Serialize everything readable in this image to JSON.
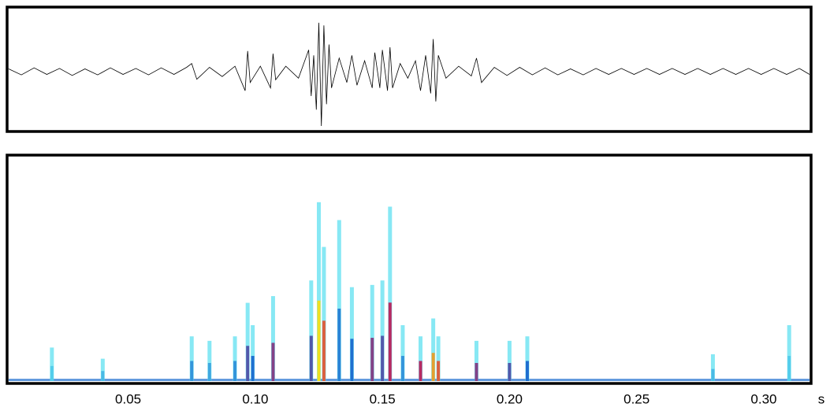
{
  "chart_data": [
    {
      "type": "line",
      "color": "#000000",
      "xlim": [
        0.003,
        0.318
      ],
      "ylim": [
        -1,
        1
      ],
      "x": [
        0.003,
        0.008,
        0.013,
        0.018,
        0.023,
        0.028,
        0.033,
        0.038,
        0.043,
        0.048,
        0.053,
        0.058,
        0.063,
        0.068,
        0.073,
        0.075,
        0.077,
        0.082,
        0.087,
        0.092,
        0.096,
        0.097,
        0.098,
        0.102,
        0.106,
        0.107,
        0.108,
        0.112,
        0.117,
        0.121,
        0.122,
        0.123,
        0.124,
        0.125,
        0.126,
        0.127,
        0.128,
        0.129,
        0.13,
        0.133,
        0.136,
        0.138,
        0.14,
        0.143,
        0.146,
        0.147,
        0.149,
        0.15,
        0.152,
        0.153,
        0.154,
        0.157,
        0.16,
        0.163,
        0.165,
        0.167,
        0.169,
        0.17,
        0.171,
        0.172,
        0.175,
        0.18,
        0.185,
        0.187,
        0.189,
        0.194,
        0.199,
        0.204,
        0.209,
        0.214,
        0.219,
        0.224,
        0.229,
        0.234,
        0.239,
        0.244,
        0.249,
        0.254,
        0.259,
        0.264,
        0.269,
        0.274,
        0.279,
        0.284,
        0.289,
        0.294,
        0.299,
        0.304,
        0.309,
        0.314,
        0.318
      ],
      "values": [
        0.05,
        -0.06,
        0.07,
        -0.05,
        0.06,
        -0.07,
        0.05,
        -0.06,
        0.07,
        -0.05,
        0.06,
        -0.06,
        0.07,
        -0.05,
        0.08,
        0.15,
        -0.14,
        0.08,
        -0.09,
        0.1,
        -0.35,
        0.38,
        -0.2,
        0.1,
        -0.3,
        0.33,
        -0.15,
        0.1,
        -0.12,
        0.4,
        -0.45,
        0.3,
        -0.7,
        0.9,
        -1,
        0.85,
        -0.6,
        0.5,
        -0.3,
        0.25,
        -0.2,
        0.3,
        -0.25,
        0.2,
        -0.3,
        0.35,
        -0.3,
        0.4,
        -0.35,
        0.45,
        -0.3,
        0.15,
        -0.12,
        0.2,
        -0.35,
        0.3,
        -0.4,
        0.6,
        -0.55,
        0.3,
        -0.12,
        0.1,
        -0.08,
        0.25,
        -0.2,
        0.08,
        -0.07,
        0.08,
        -0.06,
        0.07,
        -0.06,
        0.05,
        -0.06,
        0.06,
        -0.05,
        0.06,
        -0.05,
        0.06,
        -0.05,
        0.06,
        -0.05,
        0.06,
        -0.05,
        0.06,
        -0.05,
        0.06,
        -0.05,
        0.06,
        -0.05,
        0.06,
        -0.05
      ]
    },
    {
      "type": "spectrogram",
      "xlim": [
        0.003,
        0.318
      ],
      "ylim": [
        0,
        1
      ],
      "xticks": [
        0.05,
        {
          "value": 0.1,
          "label": "0.10"
        },
        0.15,
        {
          "value": 0.2,
          "label": "0.20"
        },
        0.25,
        {
          "value": 0.3,
          "label": "0.30"
        }
      ],
      "x_unit": "s",
      "colormap": [
        "#5fe0f0",
        "#1f6fd0",
        "#d02050",
        "#f0e020"
      ],
      "x": [
        0.02,
        0.04,
        0.075,
        0.082,
        0.092,
        0.097,
        0.099,
        0.107,
        0.122,
        0.125,
        0.127,
        0.133,
        0.138,
        0.146,
        0.15,
        0.153,
        0.158,
        0.165,
        0.17,
        0.172,
        0.187,
        0.2,
        0.207,
        0.28,
        0.31
      ],
      "tops": [
        0.15,
        0.1,
        0.2,
        0.18,
        0.2,
        0.35,
        0.25,
        0.38,
        0.45,
        0.8,
        0.6,
        0.72,
        0.42,
        0.43,
        0.45,
        0.78,
        0.25,
        0.2,
        0.28,
        0.2,
        0.18,
        0.18,
        0.2,
        0.12,
        0.25
      ],
      "values": [
        0.25,
        0.3,
        0.4,
        0.35,
        0.4,
        0.6,
        0.5,
        0.7,
        0.6,
        1,
        0.9,
        0.45,
        0.5,
        0.7,
        0.6,
        0.8,
        0.4,
        0.8,
        0.95,
        0.9,
        0.7,
        0.6,
        0.5,
        0.3,
        0.25
      ]
    }
  ]
}
